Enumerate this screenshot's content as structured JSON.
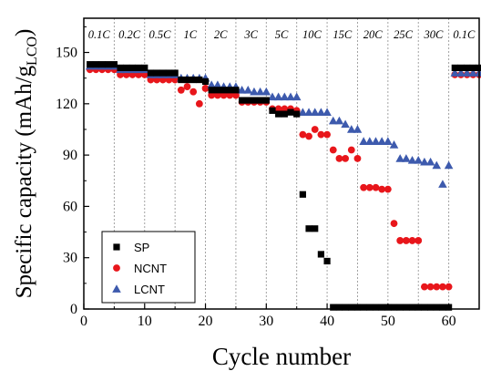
{
  "chart_data": {
    "type": "scatter",
    "xlabel": "Cycle number",
    "ylabel_main": "Specific capacity (mAh/g",
    "ylabel_sub": "LCO",
    "ylabel_close": ")",
    "xlim": [
      0,
      65
    ],
    "ylim": [
      0,
      170
    ],
    "xticks": [
      0,
      10,
      20,
      30,
      40,
      50,
      60
    ],
    "yticks": [
      0,
      30,
      60,
      90,
      120,
      150
    ],
    "rate_dividers": [
      5,
      10,
      15,
      20,
      25,
      30,
      35,
      40,
      45,
      50,
      55,
      60
    ],
    "rate_labels": [
      {
        "x": 2.5,
        "label": "0.1C"
      },
      {
        "x": 7.5,
        "label": "0.2C"
      },
      {
        "x": 12.5,
        "label": "0.5C"
      },
      {
        "x": 17.5,
        "label": "1C"
      },
      {
        "x": 22.5,
        "label": "2C"
      },
      {
        "x": 27.5,
        "label": "3C"
      },
      {
        "x": 32.5,
        "label": "5C"
      },
      {
        "x": 37.5,
        "label": "10C"
      },
      {
        "x": 42.5,
        "label": "15C"
      },
      {
        "x": 47.5,
        "label": "20C"
      },
      {
        "x": 52.5,
        "label": "25C"
      },
      {
        "x": 57.5,
        "label": "30C"
      },
      {
        "x": 62.5,
        "label": "0.1C"
      }
    ],
    "legend_position": "bottom-left",
    "series": [
      {
        "name": "SP",
        "marker": "square",
        "color": "#000000",
        "points": [
          [
            1,
            143
          ],
          [
            2,
            143
          ],
          [
            3,
            143
          ],
          [
            4,
            143
          ],
          [
            5,
            143
          ],
          [
            6,
            141
          ],
          [
            7,
            141
          ],
          [
            8,
            141
          ],
          [
            9,
            141
          ],
          [
            10,
            141
          ],
          [
            11,
            138
          ],
          [
            12,
            138
          ],
          [
            13,
            138
          ],
          [
            14,
            138
          ],
          [
            15,
            138
          ],
          [
            16,
            134
          ],
          [
            17,
            134
          ],
          [
            18,
            134
          ],
          [
            19,
            134
          ],
          [
            20,
            133
          ],
          [
            21,
            128
          ],
          [
            22,
            128
          ],
          [
            23,
            128
          ],
          [
            24,
            128
          ],
          [
            25,
            128
          ],
          [
            26,
            122
          ],
          [
            27,
            122
          ],
          [
            28,
            122
          ],
          [
            29,
            122
          ],
          [
            30,
            122
          ],
          [
            31,
            116
          ],
          [
            32,
            114
          ],
          [
            33,
            114
          ],
          [
            34,
            115
          ],
          [
            35,
            114
          ],
          [
            36,
            67
          ],
          [
            37,
            47
          ],
          [
            38,
            47
          ],
          [
            39,
            32
          ],
          [
            40,
            28
          ],
          [
            41,
            1
          ],
          [
            42,
            1
          ],
          [
            43,
            1
          ],
          [
            44,
            1
          ],
          [
            45,
            1
          ],
          [
            46,
            1
          ],
          [
            47,
            1
          ],
          [
            48,
            1
          ],
          [
            49,
            1
          ],
          [
            50,
            1
          ],
          [
            51,
            1
          ],
          [
            52,
            1
          ],
          [
            53,
            1
          ],
          [
            54,
            1
          ],
          [
            55,
            1
          ],
          [
            56,
            1
          ],
          [
            57,
            1
          ],
          [
            58,
            1
          ],
          [
            59,
            1
          ],
          [
            60,
            1
          ],
          [
            61,
            141
          ],
          [
            62,
            141
          ],
          [
            63,
            141
          ],
          [
            64,
            141
          ],
          [
            65,
            141
          ]
        ]
      },
      {
        "name": "NCNT",
        "marker": "circle",
        "color": "#e8161b",
        "points": [
          [
            1,
            140
          ],
          [
            2,
            140
          ],
          [
            3,
            140
          ],
          [
            4,
            140
          ],
          [
            5,
            140
          ],
          [
            6,
            137
          ],
          [
            7,
            137
          ],
          [
            8,
            137
          ],
          [
            9,
            137
          ],
          [
            10,
            137
          ],
          [
            11,
            134
          ],
          [
            12,
            134
          ],
          [
            13,
            134
          ],
          [
            14,
            134
          ],
          [
            15,
            134
          ],
          [
            16,
            128
          ],
          [
            17,
            130
          ],
          [
            18,
            127
          ],
          [
            19,
            120
          ],
          [
            20,
            129
          ],
          [
            21,
            125
          ],
          [
            22,
            125
          ],
          [
            23,
            125
          ],
          [
            24,
            125
          ],
          [
            25,
            125
          ],
          [
            26,
            121
          ],
          [
            27,
            121
          ],
          [
            28,
            121
          ],
          [
            29,
            121
          ],
          [
            30,
            121
          ],
          [
            31,
            117
          ],
          [
            32,
            117
          ],
          [
            33,
            117
          ],
          [
            34,
            117
          ],
          [
            35,
            116
          ],
          [
            36,
            102
          ],
          [
            37,
            101
          ],
          [
            38,
            105
          ],
          [
            39,
            102
          ],
          [
            40,
            102
          ],
          [
            41,
            93
          ],
          [
            42,
            88
          ],
          [
            43,
            88
          ],
          [
            44,
            93
          ],
          [
            45,
            88
          ],
          [
            46,
            71
          ],
          [
            47,
            71
          ],
          [
            48,
            71
          ],
          [
            49,
            70
          ],
          [
            50,
            70
          ],
          [
            51,
            50
          ],
          [
            52,
            40
          ],
          [
            53,
            40
          ],
          [
            54,
            40
          ],
          [
            55,
            40
          ],
          [
            56,
            13
          ],
          [
            57,
            13
          ],
          [
            58,
            13
          ],
          [
            59,
            13
          ],
          [
            60,
            13
          ],
          [
            61,
            137
          ],
          [
            62,
            137
          ],
          [
            63,
            137
          ],
          [
            64,
            137
          ],
          [
            65,
            137
          ]
        ]
      },
      {
        "name": "LCNT",
        "marker": "triangle",
        "color": "#3d5aad",
        "points": [
          [
            1,
            142
          ],
          [
            2,
            142
          ],
          [
            3,
            142
          ],
          [
            4,
            142
          ],
          [
            5,
            142
          ],
          [
            6,
            140
          ],
          [
            7,
            140
          ],
          [
            8,
            140
          ],
          [
            9,
            140
          ],
          [
            10,
            140
          ],
          [
            11,
            137
          ],
          [
            12,
            137
          ],
          [
            13,
            137
          ],
          [
            14,
            137
          ],
          [
            15,
            137
          ],
          [
            16,
            135
          ],
          [
            17,
            135
          ],
          [
            18,
            135
          ],
          [
            19,
            135
          ],
          [
            20,
            135
          ],
          [
            21,
            131
          ],
          [
            22,
            131
          ],
          [
            23,
            130
          ],
          [
            24,
            130
          ],
          [
            25,
            130
          ],
          [
            26,
            128
          ],
          [
            27,
            128
          ],
          [
            28,
            127
          ],
          [
            29,
            127
          ],
          [
            30,
            127
          ],
          [
            31,
            124
          ],
          [
            32,
            124
          ],
          [
            33,
            124
          ],
          [
            34,
            124
          ],
          [
            35,
            124
          ],
          [
            36,
            115
          ],
          [
            37,
            115
          ],
          [
            38,
            115
          ],
          [
            39,
            115
          ],
          [
            40,
            115
          ],
          [
            41,
            110
          ],
          [
            42,
            110
          ],
          [
            43,
            108
          ],
          [
            44,
            105
          ],
          [
            45,
            105
          ],
          [
            46,
            98
          ],
          [
            47,
            98
          ],
          [
            48,
            98
          ],
          [
            49,
            98
          ],
          [
            50,
            98
          ],
          [
            51,
            96
          ],
          [
            52,
            88
          ],
          [
            53,
            88
          ],
          [
            54,
            87
          ],
          [
            55,
            87
          ],
          [
            56,
            86
          ],
          [
            57,
            86
          ],
          [
            58,
            84
          ],
          [
            59,
            73
          ],
          [
            60,
            84
          ],
          [
            61,
            138
          ],
          [
            62,
            138
          ],
          [
            63,
            138
          ],
          [
            64,
            138
          ],
          [
            65,
            138
          ]
        ]
      }
    ]
  }
}
